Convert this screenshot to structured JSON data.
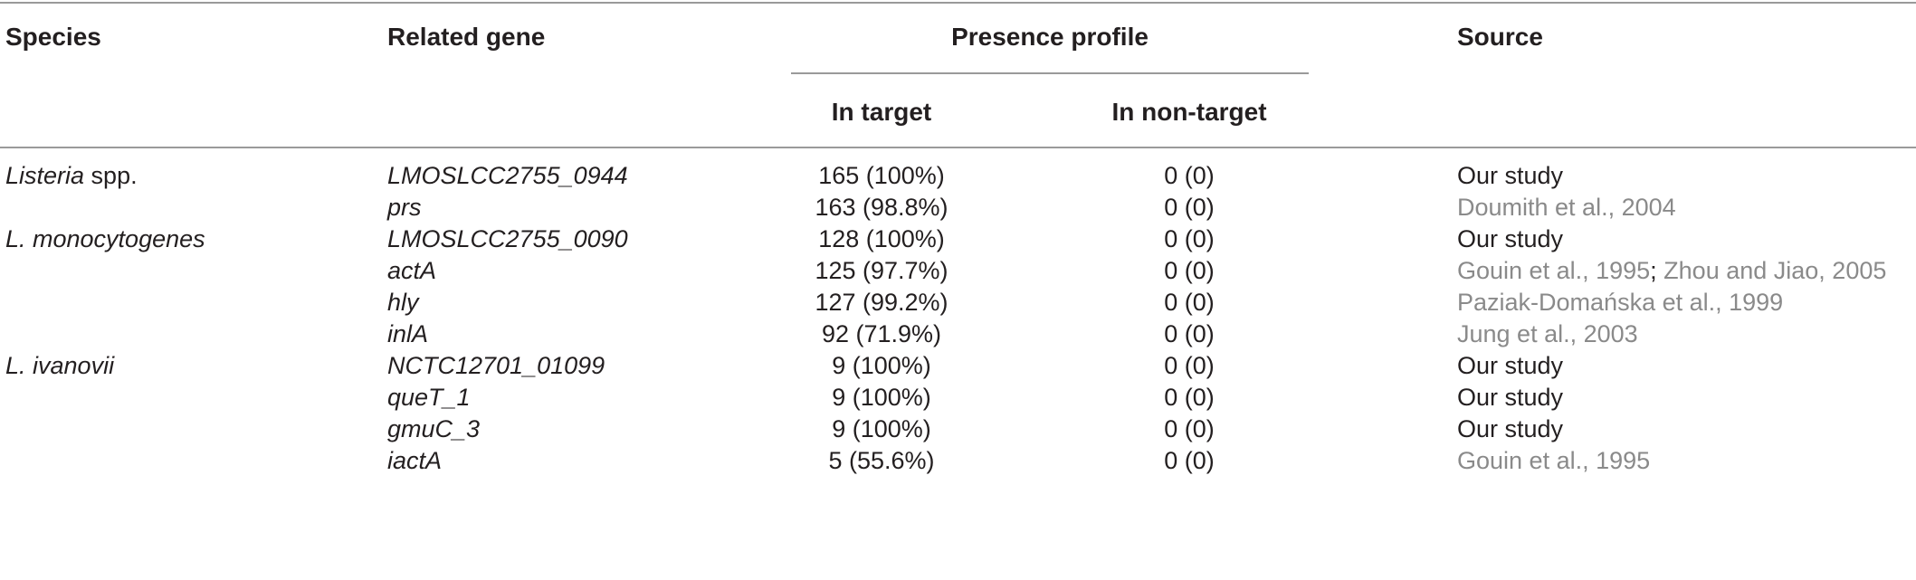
{
  "table": {
    "headers": {
      "species": "Species",
      "gene": "Related gene",
      "presence": "Presence profile",
      "source": "Source",
      "in_target": "In target",
      "in_non_target": "In non-target"
    },
    "rows": [
      {
        "species_italic": "Listeria",
        "species_rest": " spp.",
        "gene": "LMOSLCC2755_0944",
        "target": "165 (100%)",
        "non_target": "0 (0)",
        "source_a": "Our study",
        "source_b": ""
      },
      {
        "species_italic": "",
        "species_rest": "",
        "gene": "prs",
        "target": "163 (98.8%)",
        "non_target": "0 (0)",
        "source_a": "Doumith et al., 2004",
        "source_b": ""
      },
      {
        "species_italic": "L. monocytogenes",
        "species_rest": "",
        "gene": "LMOSLCC2755_0090",
        "target": "128 (100%)",
        "non_target": "0 (0)",
        "source_a": "Our study",
        "source_b": ""
      },
      {
        "species_italic": "",
        "species_rest": "",
        "gene": "actA",
        "target": "125 (97.7%)",
        "non_target": "0 (0)",
        "source_a": "Gouin et al., 1995",
        "source_b": "Zhou and Jiao, 2005"
      },
      {
        "species_italic": "",
        "species_rest": "",
        "gene": "hly",
        "target": "127 (99.2%)",
        "non_target": "0 (0)",
        "source_a": "Paziak-Domańska et al., 1999",
        "source_b": ""
      },
      {
        "species_italic": "",
        "species_rest": "",
        "gene": "inlA",
        "target": "92 (71.9%)",
        "non_target": "0 (0)",
        "source_a": "Jung et al., 2003",
        "source_b": ""
      },
      {
        "species_italic": "L. ivanovii",
        "species_rest": "",
        "gene": "NCTC12701_01099",
        "target": "9 (100%)",
        "non_target": "0 (0)",
        "source_a": "Our study",
        "source_b": ""
      },
      {
        "species_italic": "",
        "species_rest": "",
        "gene": "queT_1",
        "target": "9 (100%)",
        "non_target": "0 (0)",
        "source_a": "Our study",
        "source_b": ""
      },
      {
        "species_italic": "",
        "species_rest": "",
        "gene": "gmuC_3",
        "target": "9 (100%)",
        "non_target": "0 (0)",
        "source_a": "Our study",
        "source_b": ""
      },
      {
        "species_italic": "",
        "species_rest": "",
        "gene": "iactA",
        "target": "5 (55.6%)",
        "non_target": "0 (0)",
        "source_a": "Gouin et al., 1995",
        "source_b": ""
      }
    ]
  }
}
